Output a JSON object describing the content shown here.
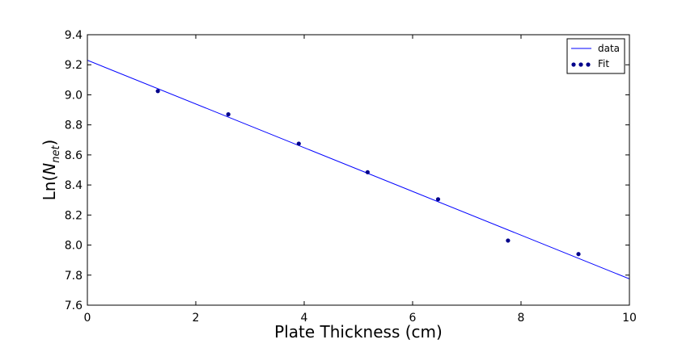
{
  "chart_data": {
    "type": "scatter",
    "title": "",
    "xlabel": "Plate Thickness (cm)",
    "ylabel": "Ln(N_net)",
    "ylabel_parts": {
      "prefix": "Ln(",
      "base": "N",
      "subscript": "net",
      "suffix": ")"
    },
    "xlim": [
      0,
      10
    ],
    "ylim": [
      7.6,
      9.4
    ],
    "xticks": [
      0,
      2,
      4,
      6,
      8,
      10
    ],
    "yticks": [
      7.6,
      7.8,
      8.0,
      8.2,
      8.4,
      8.6,
      8.8,
      9.0,
      9.2,
      9.4
    ],
    "xtick_labels": [
      "0",
      "2",
      "4",
      "6",
      "8",
      "10"
    ],
    "ytick_labels": [
      "7.6",
      "7.8",
      "8.0",
      "8.2",
      "8.4",
      "8.6",
      "8.8",
      "9.0",
      "9.2",
      "9.4"
    ],
    "grid": false,
    "legend_position": "top-right",
    "series": [
      {
        "name": "data",
        "kind": "line",
        "color": "#0000ff",
        "x": [
          0,
          10
        ],
        "y": [
          9.23,
          7.775
        ]
      },
      {
        "name": "Fit",
        "kind": "scatter",
        "color": "#00008b",
        "x": [
          1.3,
          2.6,
          3.9,
          5.17,
          6.47,
          7.76,
          9.06
        ],
        "y": [
          9.025,
          8.87,
          8.675,
          8.485,
          8.305,
          8.03,
          7.94
        ]
      }
    ]
  }
}
